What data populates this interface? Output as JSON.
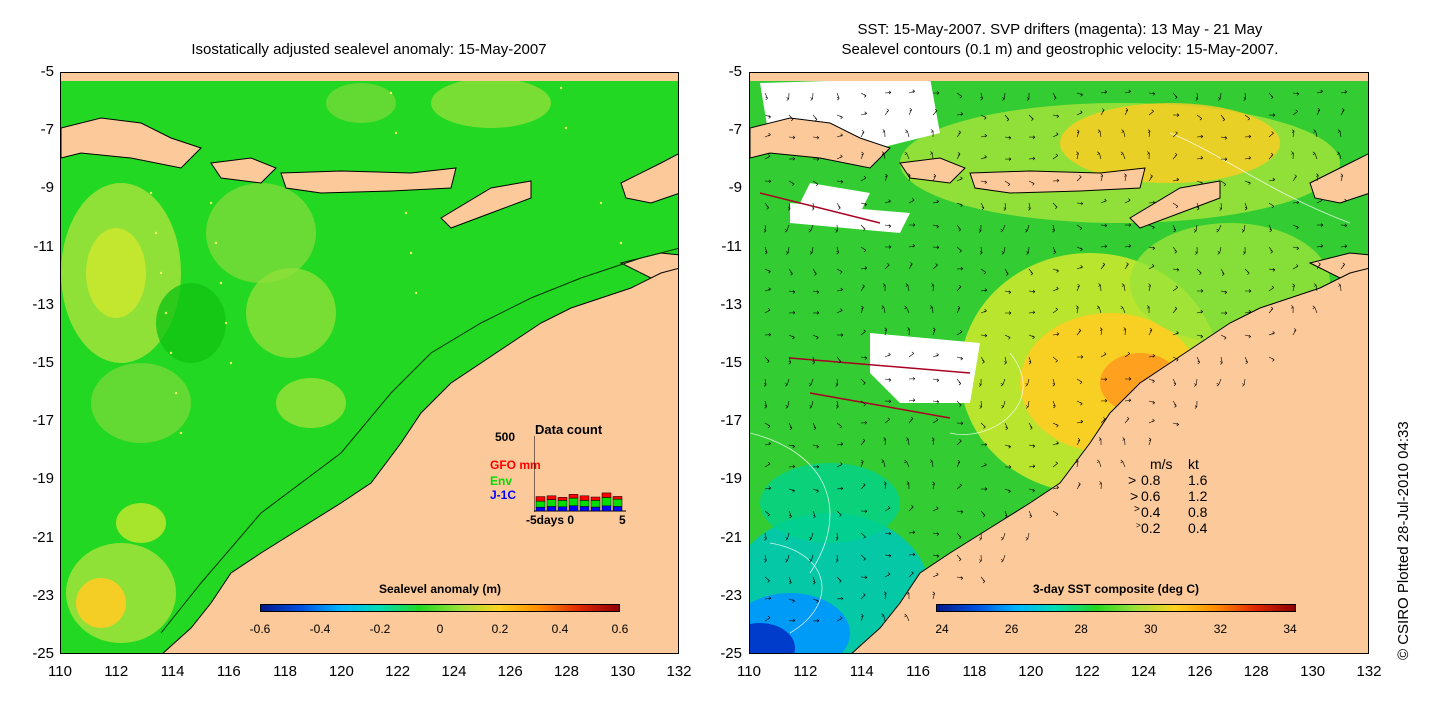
{
  "left_panel": {
    "title": "Isostatically adjusted sealevel anomaly: 15-May-2007",
    "y_ticks": [
      "-5",
      "-7",
      "-9",
      "-11",
      "-13",
      "-15",
      "-17",
      "-19",
      "-21",
      "-23",
      "-25"
    ],
    "x_ticks": [
      "110",
      "112",
      "114",
      "116",
      "118",
      "120",
      "122",
      "124",
      "126",
      "128",
      "130",
      "132"
    ],
    "colorbar": {
      "title": "Sealevel anomaly (m)",
      "ticks": [
        "-0.6",
        "-0.4",
        "-0.2",
        "0",
        "0.2",
        "0.4",
        "0.6"
      ]
    },
    "data_count": {
      "title": "Data count",
      "y_max": "500",
      "series": [
        {
          "label": "GFO mm",
          "color": "#ff0000"
        },
        {
          "label": "Env",
          "color": "#00dd00"
        },
        {
          "label": "J-1C",
          "color": "#0000ff"
        }
      ],
      "x_label": "-5days 0",
      "x_end": "5",
      "bars": [
        {
          "jc": 25,
          "env": 40,
          "gfo": 30
        },
        {
          "jc": 30,
          "env": 45,
          "gfo": 25
        },
        {
          "jc": 28,
          "env": 42,
          "gfo": 20
        },
        {
          "jc": 35,
          "env": 50,
          "gfo": 25
        },
        {
          "jc": 30,
          "env": 40,
          "gfo": 30
        },
        {
          "jc": 26,
          "env": 44,
          "gfo": 22
        },
        {
          "jc": 34,
          "env": 55,
          "gfo": 30
        },
        {
          "jc": 30,
          "env": 48,
          "gfo": 18
        }
      ]
    }
  },
  "right_panel": {
    "title_line1": "SST: 15-May-2007. SVP drifters (magenta): 13 May - 21 May",
    "title_line2": "Sealevel contours (0.1 m) and geostrophic velocity: 15-May-2007.",
    "y_ticks": [
      "-5",
      "-7",
      "-9",
      "-11",
      "-13",
      "-15",
      "-17",
      "-19",
      "-21",
      "-23",
      "-25"
    ],
    "x_ticks": [
      "110",
      "112",
      "114",
      "116",
      "118",
      "120",
      "122",
      "124",
      "126",
      "128",
      "130",
      "132"
    ],
    "colorbar": {
      "title": "3-day SST composite (deg C)",
      "ticks": [
        "24",
        "26",
        "28",
        "30",
        "32",
        "34"
      ]
    },
    "velocity_legend": {
      "header_ms": "m/s",
      "header_kt": "kt",
      "rows": [
        {
          "ms": "0.8",
          "kt": "1.6"
        },
        {
          "ms": "0.6",
          "kt": "1.2"
        },
        {
          "ms": "0.4",
          "kt": "0.8"
        },
        {
          "ms": "0.2",
          "kt": "0.4"
        }
      ]
    }
  },
  "credit": "© CSIRO Plotted 28-Jul-2010 04:33",
  "colors": {
    "land": "#fcc99a",
    "sla_green": "#22d822",
    "sst_green": "#33cc33"
  }
}
